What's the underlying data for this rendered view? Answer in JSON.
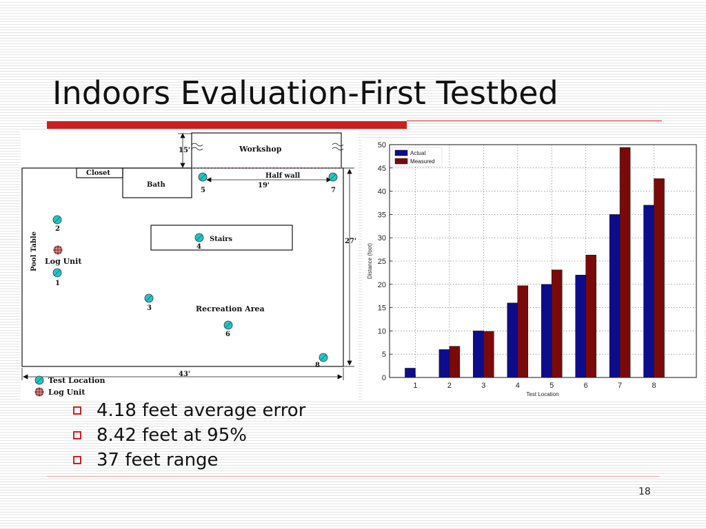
{
  "slide": {
    "title": "Indoors Evaluation-First Testbed",
    "page_number": "18",
    "accent_color": "#cc1f1f",
    "bullets": [
      "4.18 feet average error",
      "8.42 feet at 95%",
      "37 feet range"
    ]
  },
  "floorplan": {
    "rooms": {
      "workshop": "Workshop",
      "closet": "Closet",
      "bath": "Bath",
      "half_wall": "Half wall",
      "stairs": "Stairs",
      "recreation": "Recreation Area",
      "pool_table": "Pool Table",
      "log_unit": "Log Unit"
    },
    "dimensions": {
      "d15": "15'",
      "d19": "19'",
      "d27": "27'",
      "d43": "43'"
    },
    "points": [
      "1",
      "2",
      "3",
      "4",
      "5",
      "6",
      "7",
      "8"
    ],
    "legend": {
      "test_location": "Test Location",
      "log_unit": "Log Unit"
    },
    "colors": {
      "test_location": "#22c5c5",
      "log_unit": "#a33030"
    }
  },
  "chart_data": {
    "type": "bar",
    "categories": [
      "1",
      "2",
      "3",
      "4",
      "5",
      "6",
      "7",
      "8"
    ],
    "series": [
      {
        "name": "Actual",
        "values": [
          2,
          6,
          10,
          16,
          20,
          22,
          35,
          37
        ],
        "color": "#0d0d8c"
      },
      {
        "name": "Measured",
        "values": [
          0,
          6.7,
          9.9,
          19.7,
          23.1,
          26.3,
          49.4,
          42.7
        ],
        "color": "#7a0a0a"
      }
    ],
    "xlabel": "Test Location",
    "ylabel": "Distance (foot)",
    "ylim": [
      0,
      50
    ],
    "yticks": [
      "0",
      "5",
      "10",
      "15",
      "20",
      "25",
      "30",
      "35",
      "40",
      "45",
      "50"
    ],
    "grid": true,
    "legend_position": "top-left"
  }
}
